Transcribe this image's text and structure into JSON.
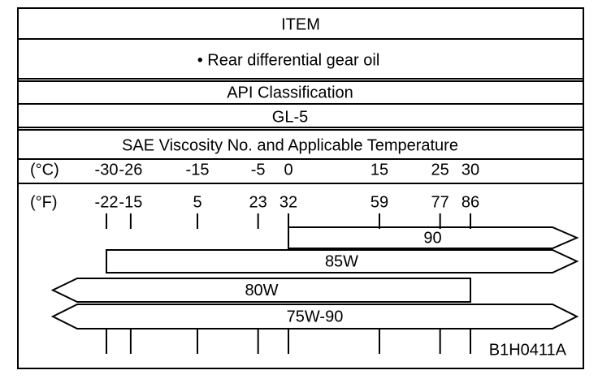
{
  "rows": [
    "ITEM",
    "• Rear differential gear oil",
    "API Classification",
    "GL-5",
    "SAE Viscosity No. and Applicable Temperature"
  ],
  "scale": {
    "celsius_label": "(°C)",
    "fahrenheit_label": "(°F)",
    "celsius": [
      -30,
      -26,
      -15,
      -5,
      0,
      15,
      25,
      30
    ],
    "fahrenheit": [
      -22,
      -15,
      5,
      23,
      32,
      59,
      77,
      86
    ]
  },
  "bars": [
    {
      "label": "90",
      "min_c": 0,
      "max_c": null
    },
    {
      "label": "85W",
      "min_c": -30,
      "max_c": null
    },
    {
      "label": "80W",
      "min_c": null,
      "max_c": 30
    },
    {
      "label": "75W-90",
      "min_c": null,
      "max_c": null
    }
  ],
  "code": "B1H0411A"
}
